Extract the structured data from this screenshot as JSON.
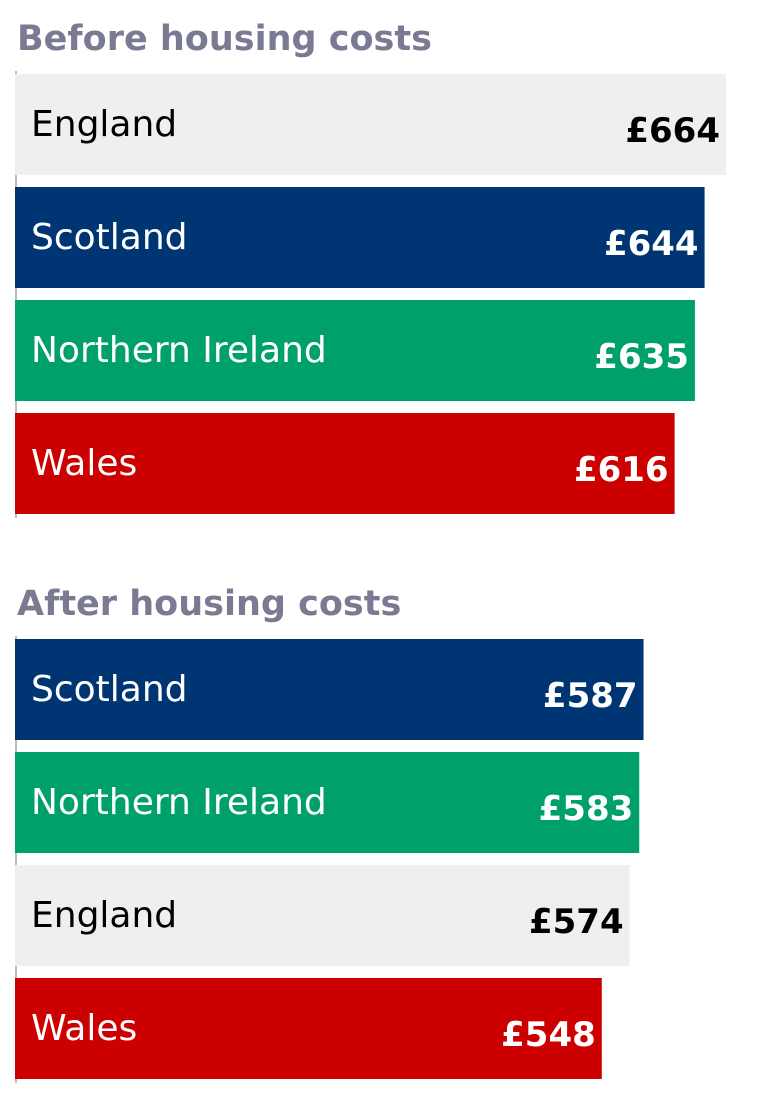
{
  "chart_data": {
    "type": "bar",
    "orientation": "horizontal",
    "unit": "£",
    "title_color": "#7b7a93",
    "country_colors": {
      "England": "#efefef",
      "Scotland": "#003574",
      "Northern Ireland": "#00a06d",
      "Wales": "#cc0000"
    },
    "label_colors": {
      "England": "#000000",
      "Scotland": "#ffffff",
      "Northern Ireland": "#ffffff",
      "Wales": "#ffffff"
    },
    "panels": [
      {
        "title": "Before housing costs",
        "bars": [
          {
            "category": "England",
            "value": 664,
            "label": "£664"
          },
          {
            "category": "Scotland",
            "value": 644,
            "label": "£644"
          },
          {
            "category": "Northern Ireland",
            "value": 635,
            "label": "£635"
          },
          {
            "category": "Wales",
            "value": 616,
            "label": "£616"
          }
        ]
      },
      {
        "title": "After housing costs",
        "bars": [
          {
            "category": "Scotland",
            "value": 587,
            "label": "£587"
          },
          {
            "category": "Northern Ireland",
            "value": 583,
            "label": "£583"
          },
          {
            "category": "England",
            "value": 574,
            "label": "£574"
          },
          {
            "category": "Wales",
            "value": 548,
            "label": "£548"
          }
        ]
      }
    ],
    "xlim": [
      0,
      664
    ],
    "grid": false,
    "legend": "none"
  }
}
